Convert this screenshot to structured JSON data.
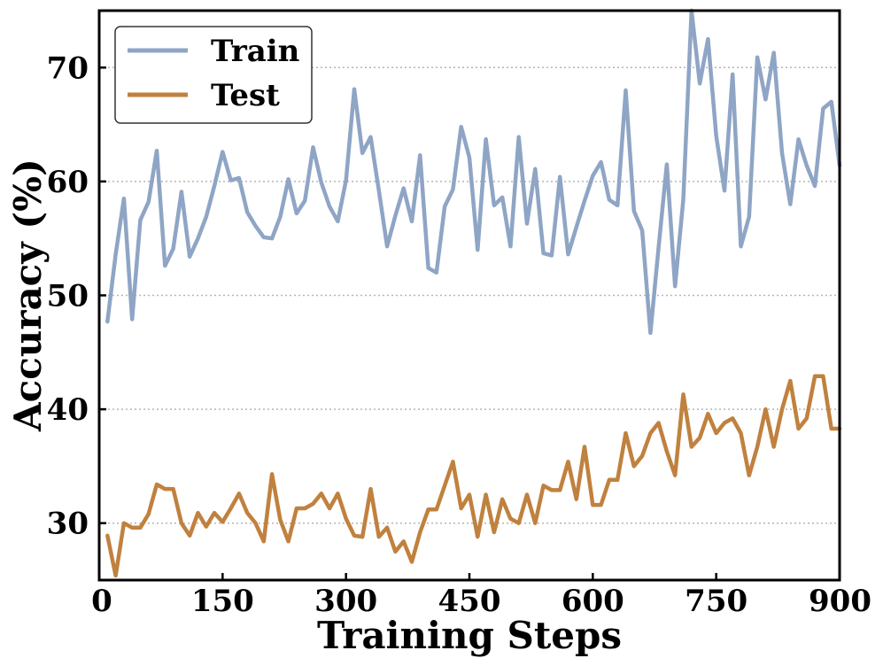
{
  "chart_data": {
    "type": "line",
    "title": "",
    "xlabel": "Training Steps",
    "ylabel": "Accuracy (%)",
    "xlim": [
      0,
      900
    ],
    "ylim": [
      25,
      75
    ],
    "xticks": [
      0,
      150,
      300,
      450,
      600,
      750,
      900
    ],
    "yticks": [
      30,
      40,
      50,
      60,
      70
    ],
    "grid": "horizontal-dotted",
    "legend_position": "top-left",
    "x": [
      10,
      20,
      30,
      40,
      50,
      60,
      70,
      80,
      90,
      100,
      110,
      120,
      130,
      140,
      150,
      160,
      170,
      180,
      190,
      200,
      210,
      220,
      230,
      240,
      250,
      260,
      270,
      280,
      290,
      300,
      310,
      320,
      330,
      340,
      350,
      360,
      370,
      380,
      390,
      400,
      410,
      420,
      430,
      440,
      450,
      460,
      470,
      480,
      490,
      500,
      510,
      520,
      530,
      540,
      550,
      560,
      570,
      580,
      590,
      600,
      610,
      620,
      630,
      640,
      650,
      660,
      670,
      680,
      690,
      700,
      710,
      720,
      730,
      740,
      750,
      760,
      770,
      780,
      790,
      800,
      810,
      820,
      830,
      840,
      850,
      860,
      870,
      880,
      890,
      900
    ],
    "series": [
      {
        "name": "Train",
        "color": "#8fa5c5",
        "values": [
          47.7,
          53.6,
          58.5,
          47.9,
          56.6,
          58.2,
          62.7,
          52.6,
          54.1,
          59.1,
          53.4,
          55.0,
          56.9,
          59.6,
          62.6,
          60.1,
          60.3,
          57.3,
          56.1,
          55.1,
          55.0,
          56.9,
          60.2,
          57.2,
          58.3,
          63.0,
          59.9,
          57.8,
          56.5,
          60.1,
          68.1,
          62.5,
          63.9,
          59.2,
          54.3,
          57.0,
          59.4,
          56.5,
          62.3,
          52.4,
          52.0,
          57.8,
          59.3,
          64.8,
          62.1,
          54.0,
          63.7,
          57.9,
          58.6,
          54.3,
          63.9,
          56.3,
          61.1,
          53.7,
          53.5,
          60.4,
          53.6,
          56.0,
          58.3,
          60.5,
          61.7,
          58.4,
          57.9,
          68.0,
          57.4,
          55.7,
          46.7,
          54.2,
          61.5,
          50.8,
          58.4,
          75.0,
          68.6,
          72.5,
          64.0,
          59.2,
          69.4,
          54.3,
          56.9,
          70.9,
          67.2,
          71.3,
          62.5,
          58.0,
          63.7,
          61.4,
          59.6,
          66.4,
          67.0,
          61.4
        ]
      },
      {
        "name": "Test",
        "color": "#c0813f",
        "values": [
          28.9,
          25.4,
          30.0,
          29.6,
          29.6,
          30.8,
          33.4,
          33.0,
          33.0,
          30.0,
          28.9,
          30.9,
          29.7,
          30.9,
          30.1,
          31.3,
          32.6,
          30.9,
          30.0,
          28.4,
          34.3,
          30.3,
          28.4,
          31.3,
          31.3,
          31.7,
          32.6,
          31.3,
          32.6,
          30.4,
          28.9,
          28.8,
          33.0,
          28.8,
          29.6,
          27.5,
          28.4,
          26.6,
          29.2,
          31.2,
          31.2,
          33.3,
          35.4,
          31.3,
          32.5,
          28.8,
          32.5,
          29.2,
          32.1,
          30.4,
          30.0,
          32.5,
          30.0,
          33.3,
          32.9,
          32.9,
          35.4,
          32.1,
          36.7,
          31.6,
          31.6,
          33.8,
          33.8,
          37.9,
          35.0,
          35.9,
          37.9,
          38.8,
          36.3,
          34.2,
          41.3,
          36.7,
          37.5,
          39.6,
          37.9,
          38.8,
          39.2,
          37.9,
          34.2,
          36.7,
          40.0,
          36.7,
          40.0,
          42.5,
          38.3,
          39.2,
          42.9,
          42.9,
          38.3,
          38.3
        ]
      }
    ]
  }
}
